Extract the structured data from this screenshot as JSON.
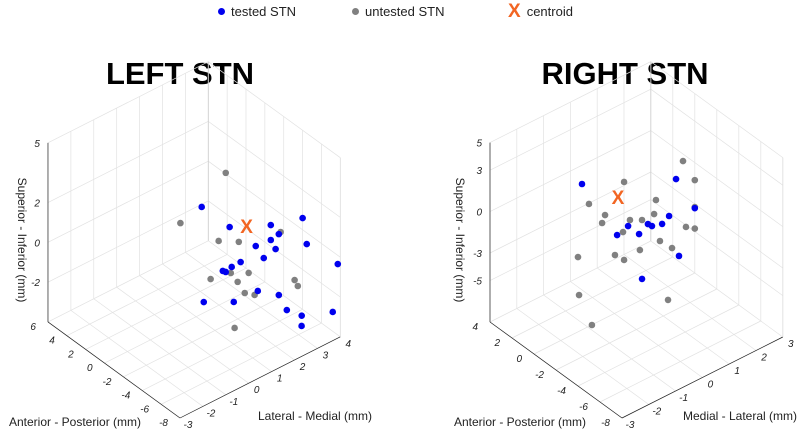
{
  "legend": {
    "tested": {
      "label": "tested STN",
      "color": "#0000ee"
    },
    "untested": {
      "label": "untested STN",
      "color": "#808080"
    },
    "centroid": {
      "label": "centroid",
      "symbol": "X",
      "color": "#f26522"
    }
  },
  "chart_data": [
    {
      "type": "scatter",
      "title": "LEFT STN",
      "xlabel": "Lateral - Medial (mm)",
      "ylabel": "Anterior - Posterior (mm)",
      "zlabel": "Superior - Inferior (mm)",
      "xlim": [
        -3,
        4
      ],
      "ylim": [
        -8,
        6
      ],
      "zlim": [
        -4,
        5
      ],
      "xticks": [
        "-3",
        "-2",
        "-1",
        "0",
        "1",
        "2",
        "3",
        "4"
      ],
      "yticks": [
        "6",
        "4",
        "2",
        "0",
        "-2",
        "-4",
        "-6",
        "-8"
      ],
      "zticks": [
        "5",
        "2",
        "0",
        "-2"
      ],
      "grid": true,
      "series": [
        {
          "name": "tested STN",
          "points": [
            [
              0.83,
              -1,
              1.96
            ],
            [
              2.05,
              -1,
              0.24
            ],
            [
              3.19,
              -1,
              -1.38
            ],
            [
              3.54,
              -1,
              -2.19
            ],
            [
              2.53,
              -1,
              -1.8
            ],
            [
              2.14,
              -1,
              -1.82
            ],
            [
              1.75,
              -1,
              -1.79
            ],
            [
              1.88,
              -1,
              -1.92
            ],
            [
              3.28,
              -1,
              -3.69
            ],
            [
              0.92,
              -1,
              -2.87
            ],
            [
              2.23,
              -1,
              -3.63
            ],
            [
              2.2,
              -5,
              1.63
            ],
            [
              3.59,
              -5,
              1.17
            ],
            [
              2.55,
              -5,
              0.97
            ],
            [
              2.2,
              -5,
              0.88
            ],
            [
              3.77,
              -5,
              -0.24
            ],
            [
              2.41,
              -5,
              0.3
            ],
            [
              3.89,
              -8,
              -0.28
            ],
            [
              2.55,
              -5,
              -2.09
            ],
            [
              2.9,
              -5,
              -3.05
            ],
            [
              3.55,
              -5,
              -3.71
            ],
            [
              3.67,
              -8,
              -2.56
            ],
            [
              2.31,
              -8,
              -2.47
            ]
          ]
        },
        {
          "name": "untested STN",
          "points": [
            [
              1.88,
              -1,
              3.06
            ],
            [
              -0.1,
              -1,
              1.69
            ],
            [
              1.57,
              -1,
              -0.18
            ],
            [
              2.45,
              -1,
              -0.74
            ],
            [
              2.63,
              -5,
              1.03
            ],
            [
              2.1,
              -1,
              -2.1
            ],
            [
              2.88,
              -1,
              -2.55
            ],
            [
              1.22,
              -1,
              -1.89
            ],
            [
              2.4,
              -1,
              -2.72
            ],
            [
              2.71,
              -1,
              -3.46
            ],
            [
              3.14,
              -1,
              -3.81
            ],
            [
              3.24,
              -5,
              -1.74
            ],
            [
              3.38,
              -5,
              -2.12
            ],
            [
              0.62,
              -5,
              -2.62
            ]
          ]
        },
        {
          "name": "centroid",
          "points": [
            [
              2.79,
              -1,
              -0.14
            ]
          ]
        }
      ]
    },
    {
      "type": "scatter",
      "title": "RIGHT STN",
      "xlabel": "Medial - Lateral (mm)",
      "ylabel": "Anterior - Posterior (mm)",
      "zlabel": "Superior - Inferior (mm)",
      "xlim": [
        -3,
        3
      ],
      "ylim": [
        -8,
        4
      ],
      "zlim": [
        -8,
        5
      ],
      "xticks": [
        "-3",
        "-2",
        "-1",
        "0",
        "1",
        "2",
        "3"
      ],
      "yticks": [
        "4",
        "2",
        "0",
        "-2",
        "-4",
        "-6",
        "-8"
      ],
      "zticks": [
        "5",
        "3",
        "0",
        "-3",
        "-5"
      ],
      "grid": true,
      "series": [
        {
          "name": "tested STN",
          "points": [
            [
              -2.03,
              -2,
              4.53
            ],
            [
              2.3,
              0,
              -0.51
            ],
            [
              3.0,
              0,
              -3.3
            ],
            [
              2.04,
              0,
              -2.93
            ],
            [
              1.78,
              0,
              -3.25
            ],
            [
              0.43,
              -2,
              -0.78
            ],
            [
              0.58,
              -2,
              -1.07
            ],
            [
              -0.31,
              -2,
              -0.2
            ],
            [
              0.1,
              -2,
              -1.18
            ],
            [
              -0.72,
              -2,
              -0.45
            ],
            [
              2.41,
              0,
              -6.19
            ],
            [
              0.21,
              -2,
              -4.54
            ]
          ]
        },
        {
          "name": "untested STN",
          "points": [
            [
              2.56,
              0,
              0.54
            ],
            [
              3.0,
              0,
              -1.27
            ],
            [
              -0.46,
              -2,
              3.14
            ],
            [
              0.73,
              -2,
              0.67
            ],
            [
              3.0,
              0,
              -3.22
            ],
            [
              -1.77,
              -2,
              2.83
            ],
            [
              -1.17,
              -2,
              1.44
            ],
            [
              0.66,
              -2,
              -0.28
            ],
            [
              -1.28,
              -2,
              0.97
            ],
            [
              -0.24,
              -2,
              0.17
            ],
            [
              0.21,
              -2,
              -0.27
            ],
            [
              2.67,
              0,
              -4.34
            ],
            [
              3.0,
              0,
              -4.78
            ],
            [
              -0.5,
              -2,
              -0.45
            ],
            [
              1.7,
              0,
              -4.41
            ],
            [
              0.13,
              -2,
              -2.37
            ],
            [
              2.15,
              0,
              -5.36
            ],
            [
              -0.8,
              -2,
              -1.82
            ],
            [
              -2.18,
              -2,
              -0.62
            ],
            [
              -0.46,
              -2,
              -2.51
            ],
            [
              -2.14,
              -2,
              -3.41
            ],
            [
              1.18,
              -2,
              -7.01
            ],
            [
              -1.66,
              -2,
              -6.05
            ]
          ]
        },
        {
          "name": "centroid",
          "points": [
            [
              -0.69,
              -2,
              2.28
            ]
          ]
        }
      ]
    }
  ]
}
